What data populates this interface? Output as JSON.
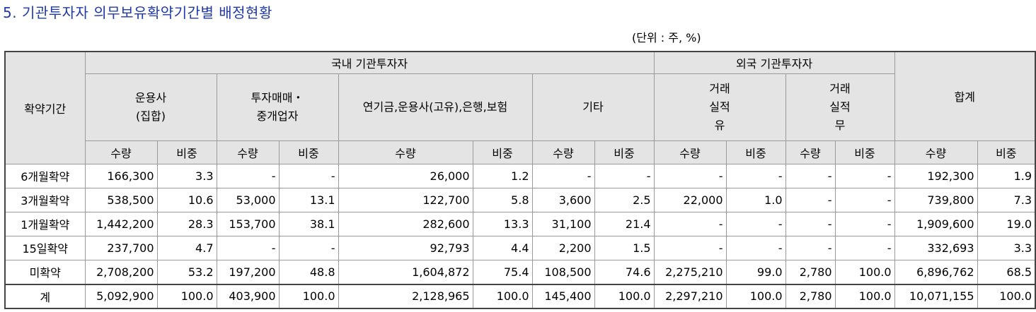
{
  "title": "5. 기관투자자 의무보유확약기간별 배정현황",
  "unit": "(단위 : 주, %)",
  "headers": {
    "period": "확약기간",
    "domestic": "국내 기관투자자",
    "foreign": "외국 기관투자자",
    "total": "합계",
    "asset_mgr": "운용사\n(집합)",
    "broker": "투자매매・\n중개업자",
    "pension": "연기금,운용사(고유),은행,보험",
    "other": "기타",
    "trade_yes": "거래\n실적\n유",
    "trade_no": "거래\n실적\n무",
    "qty": "수량",
    "ratio": "비중"
  },
  "rows": [
    {
      "label": "6개월확약",
      "c": [
        "166,300",
        "3.3",
        "-",
        "-",
        "26,000",
        "1.2",
        "-",
        "-",
        "-",
        "-",
        "-",
        "-",
        "192,300",
        "1.9"
      ]
    },
    {
      "label": "3개월확약",
      "c": [
        "538,500",
        "10.6",
        "53,000",
        "13.1",
        "122,700",
        "5.8",
        "3,600",
        "2.5",
        "22,000",
        "1.0",
        "-",
        "-",
        "739,800",
        "7.3"
      ]
    },
    {
      "label": "1개월확약",
      "c": [
        "1,442,200",
        "28.3",
        "153,700",
        "38.1",
        "282,600",
        "13.3",
        "31,100",
        "21.4",
        "-",
        "-",
        "-",
        "-",
        "1,909,600",
        "19.0"
      ]
    },
    {
      "label": "15일확약",
      "c": [
        "237,700",
        "4.7",
        "-",
        "-",
        "92,793",
        "4.4",
        "2,200",
        "1.5",
        "-",
        "-",
        "-",
        "-",
        "332,693",
        "3.3"
      ]
    },
    {
      "label": "미확약",
      "c": [
        "2,708,200",
        "53.2",
        "197,200",
        "48.8",
        "1,604,872",
        "75.4",
        "108,500",
        "74.6",
        "2,275,210",
        "99.0",
        "2,780",
        "100.0",
        "6,896,762",
        "68.5"
      ]
    },
    {
      "label": "계",
      "c": [
        "5,092,900",
        "100.0",
        "403,900",
        "100.0",
        "2,128,965",
        "100.0",
        "145,400",
        "100.0",
        "2,297,210",
        "100.0",
        "2,780",
        "100.0",
        "10,071,155",
        "100.0"
      ]
    }
  ]
}
